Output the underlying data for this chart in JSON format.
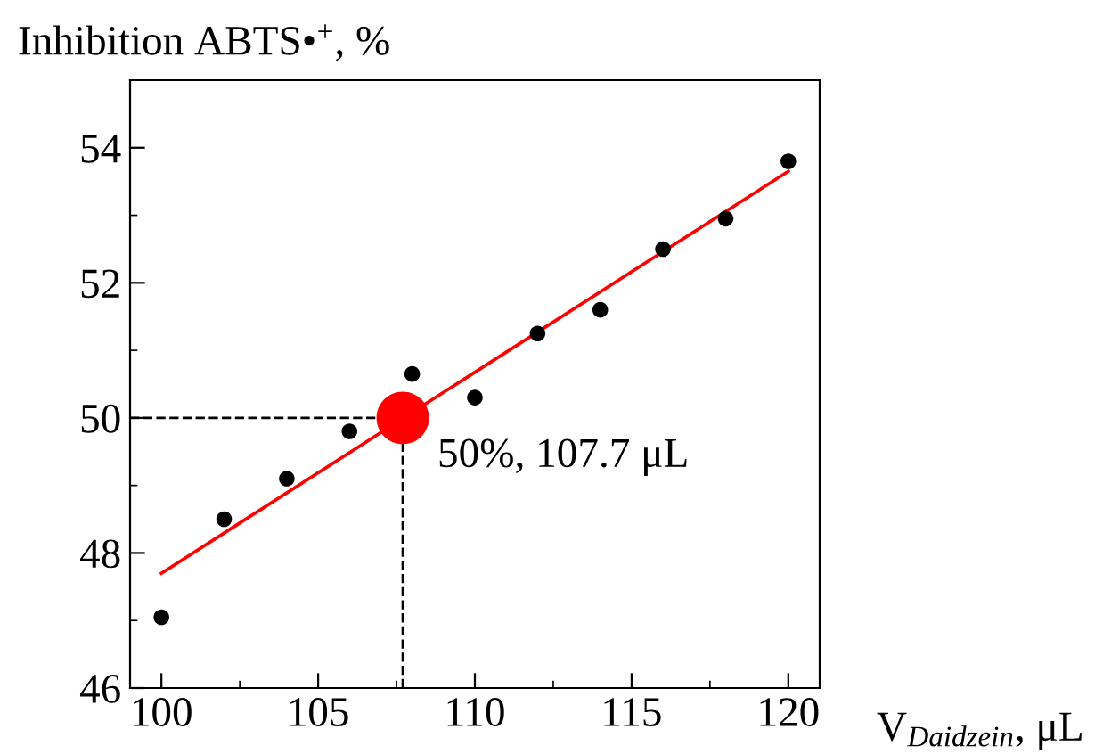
{
  "chart_data": {
    "type": "scatter",
    "xlabel": "V$_{Daidzein}$, μL",
    "ylabel": "Inhibition ABTS•$^{+}$, %",
    "xlim": [
      99,
      121
    ],
    "xticks": [
      100,
      105,
      110,
      115,
      120
    ],
    "ylim": [
      46,
      55
    ],
    "yticks": [
      46,
      48,
      50,
      52,
      54
    ],
    "grid": false,
    "legend": false,
    "series": [
      {
        "marker": "circle",
        "color": "#000000",
        "x": [
          100,
          102,
          104,
          106,
          108,
          110,
          112,
          114,
          116,
          118,
          120
        ],
        "values": [
          47.05,
          48.5,
          49.1,
          49.8,
          50.65,
          50.3,
          51.25,
          51.6,
          52.5,
          52.95,
          53.8
        ]
      },
      {
        "type": "line",
        "color": "#ff0000",
        "x": [
          100,
          120
        ],
        "values": [
          47.7,
          53.65
        ]
      },
      {
        "type": "scatter",
        "marker": "circle",
        "color": "#ff0000",
        "x": [
          107.7
        ],
        "values": [
          50
        ]
      }
    ],
    "ref_lines": [
      {
        "axis": "x",
        "value": 107.7,
        "color": "#000000",
        "line_style": "dashed"
      },
      {
        "axis": "y",
        "value": 50,
        "color": "#000000",
        "line_style": "dashed"
      }
    ],
    "annotations": [
      {
        "text": "50%, 107.7 μL",
        "x": 107.7,
        "y": 50
      }
    ]
  }
}
